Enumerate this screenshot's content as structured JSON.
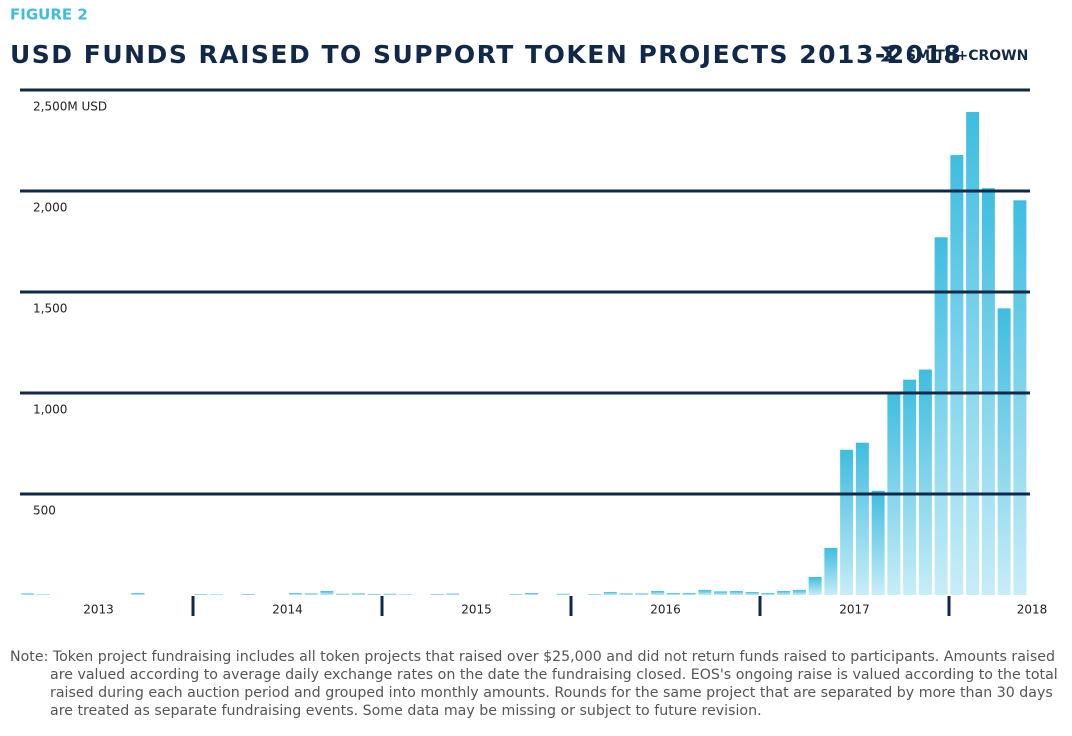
{
  "figure_label": "FIGURE 2",
  "logo": "SMITH+CROWN",
  "note": "Note: Token project fundraising includes all token projects that raised over $25,000 and did not return funds raised to participants. Amounts raised are valued according to average daily exchange rates on the date the fundraising closed. EOS's ongoing raise is valued according to the total raised during each auction period and grouped into monthly amounts. Rounds for the same project that are separated by more than 30 days are treated as separate fundraising events. Some data may be missing or subject to future revision.",
  "chart_data": {
    "type": "bar",
    "title": "USD FUNDS RAISED TO SUPPORT TOKEN PROJECTS 2013-2018",
    "year_labels": [
      "2013",
      "2014",
      "2015",
      "2016",
      "2017",
      "2018"
    ],
    "categories": [
      null,
      null,
      null,
      null,
      null,
      null,
      null,
      null,
      null,
      null,
      null,
      null,
      null,
      null,
      null,
      null,
      null,
      null,
      null,
      null,
      null,
      null,
      null,
      null,
      null,
      null,
      null,
      null,
      null,
      null,
      null,
      null,
      null,
      null,
      null,
      null,
      null,
      null,
      null,
      null,
      null,
      null,
      null,
      null,
      null,
      null,
      null,
      null,
      null,
      null,
      null,
      null,
      null,
      null,
      null,
      null,
      null,
      null,
      null,
      null,
      null,
      null,
      null,
      null,
      null
    ],
    "values": [
      0,
      8,
      3,
      0,
      0,
      0,
      0,
      0,
      10,
      0,
      0,
      0,
      4,
      3,
      0,
      5,
      0,
      0,
      10,
      8,
      20,
      6,
      8,
      5,
      6,
      3,
      0,
      4,
      7,
      0,
      0,
      0,
      4,
      10,
      0,
      6,
      0,
      4,
      15,
      8,
      8,
      20,
      10,
      10,
      25,
      18,
      20,
      15,
      10,
      20,
      25,
      89,
      233,
      719,
      754,
      516,
      1007,
      1066,
      1116,
      1771,
      2178,
      2391,
      2014,
      1419,
      1954
    ],
    "color": "#3ebde0",
    "ylim": [
      0,
      2500
    ],
    "yticks": [
      {
        "value": 500,
        "label": "500"
      },
      {
        "value": 1000,
        "label": "1,000"
      },
      {
        "value": 1500,
        "label": "1,500"
      },
      {
        "value": 2000,
        "label": "2,000"
      },
      {
        "value": 2500,
        "label": "2,500M USD"
      }
    ],
    "grid": true
  }
}
